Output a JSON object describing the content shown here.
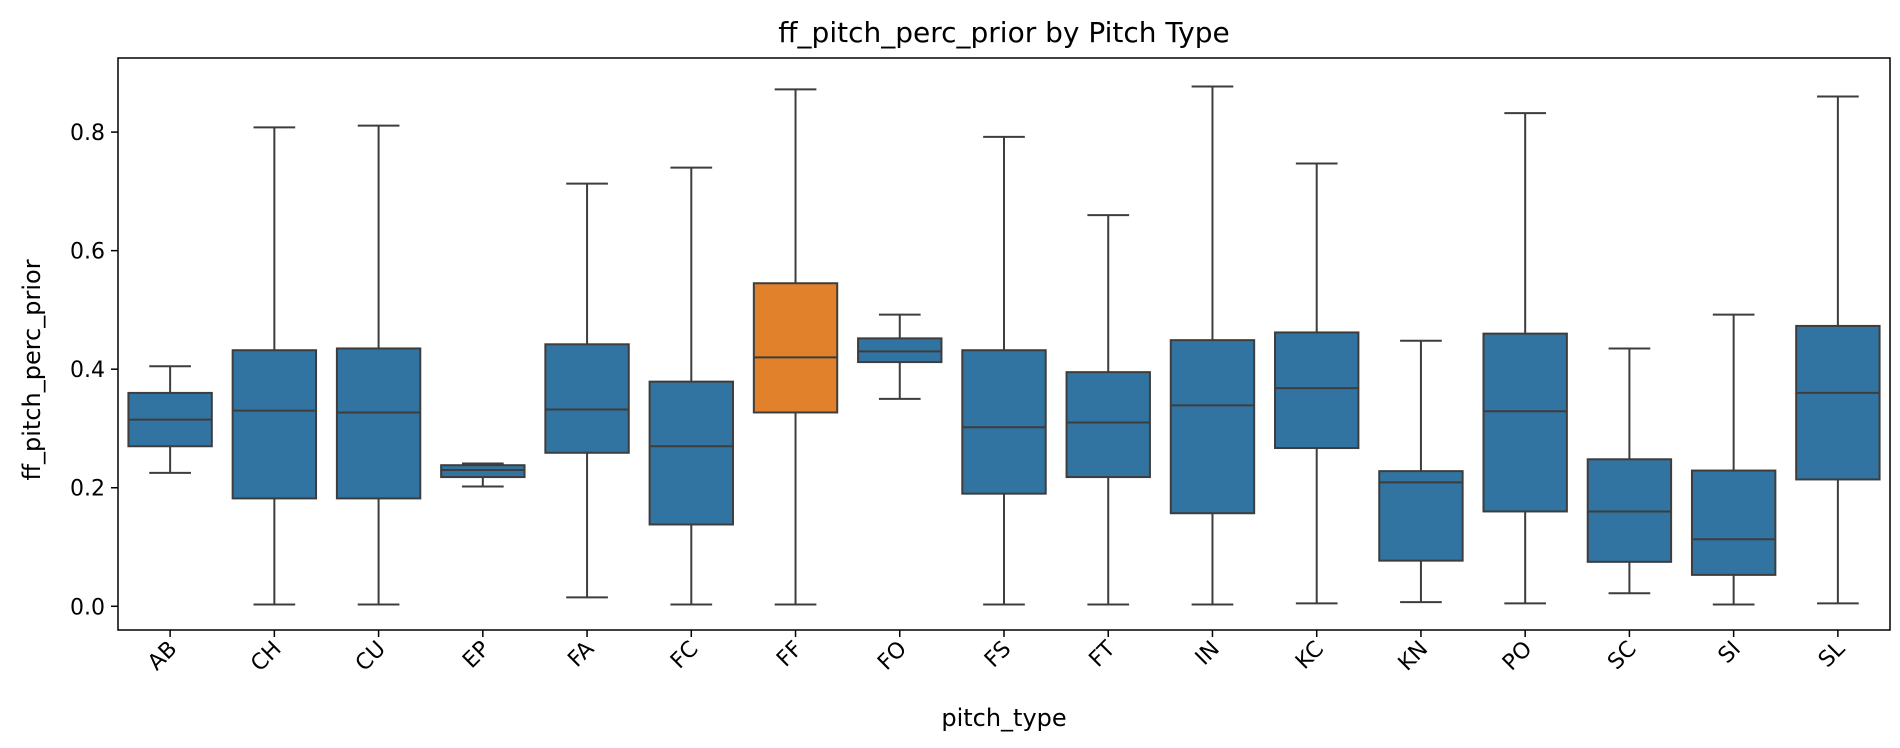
{
  "chart_data": {
    "type": "box",
    "title": "ff_pitch_perc_prior by Pitch Type",
    "xlabel": "pitch_type",
    "ylabel": "ff_pitch_perc_prior",
    "ylim": [
      -0.04,
      0.925
    ],
    "yticks": [
      "0.0",
      "0.2",
      "0.4",
      "0.6",
      "0.8"
    ],
    "ytick_values": [
      0.0,
      0.2,
      0.4,
      0.6,
      0.8
    ],
    "grid": false,
    "colors": {
      "default": "#3274a1",
      "highlight": "#e1812c",
      "line": "#3d3d3d"
    },
    "categories": [
      "AB",
      "CH",
      "CU",
      "EP",
      "FA",
      "FC",
      "FF",
      "FO",
      "FS",
      "FT",
      "IN",
      "KC",
      "KN",
      "PO",
      "SC",
      "SI",
      "SL"
    ],
    "boxes": [
      {
        "label": "AB",
        "whisker_low": 0.225,
        "q1": 0.27,
        "median": 0.315,
        "q3": 0.36,
        "whisker_high": 0.405,
        "highlight": false
      },
      {
        "label": "CH",
        "whisker_low": 0.003,
        "q1": 0.182,
        "median": 0.33,
        "q3": 0.432,
        "whisker_high": 0.808,
        "highlight": false
      },
      {
        "label": "CU",
        "whisker_low": 0.003,
        "q1": 0.182,
        "median": 0.327,
        "q3": 0.435,
        "whisker_high": 0.811,
        "highlight": false
      },
      {
        "label": "EP",
        "whisker_low": 0.202,
        "q1": 0.218,
        "median": 0.23,
        "q3": 0.238,
        "whisker_high": 0.241,
        "highlight": false
      },
      {
        "label": "FA",
        "whisker_low": 0.015,
        "q1": 0.259,
        "median": 0.332,
        "q3": 0.442,
        "whisker_high": 0.713,
        "highlight": false
      },
      {
        "label": "FC",
        "whisker_low": 0.003,
        "q1": 0.138,
        "median": 0.27,
        "q3": 0.379,
        "whisker_high": 0.74,
        "highlight": false
      },
      {
        "label": "FF",
        "whisker_low": 0.003,
        "q1": 0.327,
        "median": 0.42,
        "q3": 0.545,
        "whisker_high": 0.872,
        "highlight": true
      },
      {
        "label": "FO",
        "whisker_low": 0.35,
        "q1": 0.412,
        "median": 0.43,
        "q3": 0.452,
        "whisker_high": 0.492,
        "highlight": false
      },
      {
        "label": "FS",
        "whisker_low": 0.003,
        "q1": 0.19,
        "median": 0.302,
        "q3": 0.432,
        "whisker_high": 0.792,
        "highlight": false
      },
      {
        "label": "FT",
        "whisker_low": 0.003,
        "q1": 0.218,
        "median": 0.31,
        "q3": 0.395,
        "whisker_high": 0.66,
        "highlight": false
      },
      {
        "label": "IN",
        "whisker_low": 0.003,
        "q1": 0.157,
        "median": 0.339,
        "q3": 0.449,
        "whisker_high": 0.877,
        "highlight": false
      },
      {
        "label": "KC",
        "whisker_low": 0.005,
        "q1": 0.267,
        "median": 0.368,
        "q3": 0.462,
        "whisker_high": 0.747,
        "highlight": false
      },
      {
        "label": "KN",
        "whisker_low": 0.007,
        "q1": 0.077,
        "median": 0.209,
        "q3": 0.228,
        "whisker_high": 0.448,
        "highlight": false
      },
      {
        "label": "PO",
        "whisker_low": 0.005,
        "q1": 0.16,
        "median": 0.329,
        "q3": 0.46,
        "whisker_high": 0.832,
        "highlight": false
      },
      {
        "label": "SC",
        "whisker_low": 0.022,
        "q1": 0.075,
        "median": 0.16,
        "q3": 0.248,
        "whisker_high": 0.435,
        "highlight": false
      },
      {
        "label": "SI",
        "whisker_low": 0.003,
        "q1": 0.053,
        "median": 0.113,
        "q3": 0.229,
        "whisker_high": 0.492,
        "highlight": false
      },
      {
        "label": "SL",
        "whisker_low": 0.005,
        "q1": 0.214,
        "median": 0.36,
        "q3": 0.473,
        "whisker_high": 0.86,
        "highlight": false
      }
    ]
  }
}
